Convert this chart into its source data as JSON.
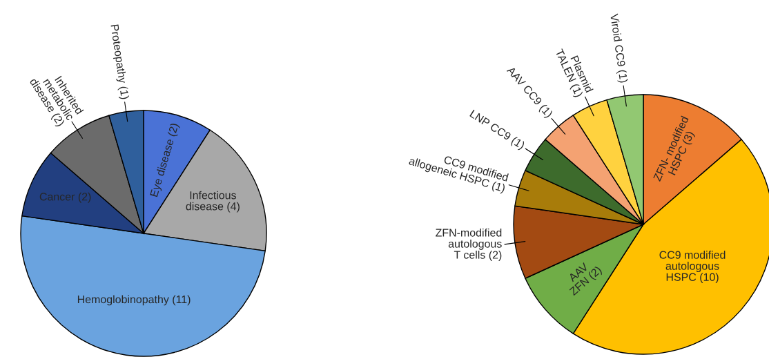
{
  "chart_data": [
    {
      "type": "pie",
      "categories": [
        "Eye disease (2)",
        "Infectious\ndisease (4)",
        "Hemoglobinopathy (11)",
        "Cancer (2)",
        "Inherited\nmetabolic\ndisease (2)",
        "Proteopathy (1)"
      ],
      "values": [
        2,
        4,
        11,
        2,
        2,
        1
      ],
      "colors": [
        "#4a72d6",
        "#a8a8a8",
        "#6aa3df",
        "#223f80",
        "#6b6b6b",
        "#2f5f9c"
      ]
    },
    {
      "type": "pie",
      "categories": [
        "ZFN- modified\nHSPC (3)",
        "CC9 modified\nautologous\nHSPC (10)",
        "AAV\nZFN (2)",
        "ZFN-modified\nautologous\nT cells (2)",
        "CC9 modified\nallogeneic HSPC (1)",
        "LNP CC9 (1)",
        "AAV CC9 (1)",
        "Plasmid\nTALEN (1)",
        "Viroid CC9 (1)"
      ],
      "values": [
        3,
        10,
        2,
        2,
        1,
        1,
        1,
        1,
        1
      ],
      "colors": [
        "#ed7d31",
        "#ffc000",
        "#70ad47",
        "#a34a12",
        "#a87c0a",
        "#3d6b2c",
        "#f4a272",
        "#ffd23f",
        "#92c872"
      ]
    }
  ]
}
